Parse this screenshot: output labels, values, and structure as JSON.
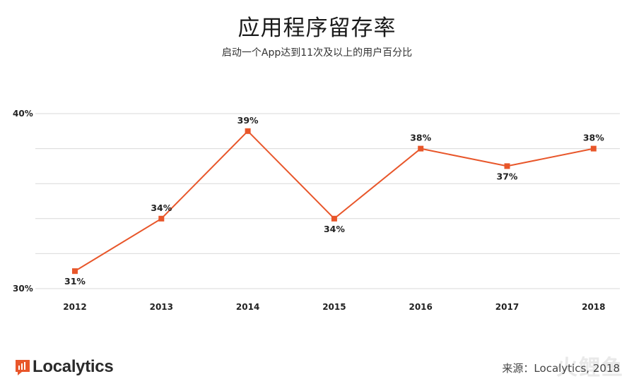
{
  "header": {
    "title": "应用程序留存率",
    "subtitle": "启动一个App达到11次及以上的用户百分比"
  },
  "chart_data": {
    "type": "line",
    "title": "应用程序留存率",
    "subtitle": "启动一个App达到11次及以上的用户百分比",
    "categories": [
      "2012",
      "2013",
      "2014",
      "2015",
      "2016",
      "2017",
      "2018"
    ],
    "series": [
      {
        "values": [
          31,
          34,
          39,
          34,
          38,
          37,
          38
        ],
        "labels": [
          "31%",
          "34%",
          "39%",
          "34%",
          "38%",
          "37%",
          "38%"
        ],
        "color": "#e8562a"
      }
    ],
    "ylim": [
      30,
      40
    ],
    "ytick_labels": {
      "30": "30%",
      "40": "40%"
    },
    "grid": true
  },
  "footer": {
    "brand": "Localytics",
    "source": "来源：Localytics, 2018",
    "watermark": "火鲤鱼"
  },
  "colors": {
    "line": "#e8562a",
    "grid": "#d9d9d9",
    "brand": "#e8562a"
  }
}
